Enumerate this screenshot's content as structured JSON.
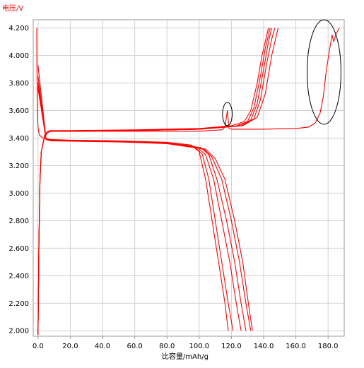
{
  "chart_data": {
    "type": "line",
    "title": "",
    "ylabel": "电压/V",
    "xlabel": "比容量/mAh/g",
    "xlim": [
      -3,
      190
    ],
    "ylim": [
      1.96,
      4.26
    ],
    "x_ticks": [
      "0.0",
      "20.0",
      "40.0",
      "60.0",
      "80.0",
      "100.0",
      "120.0",
      "140.0",
      "160.0",
      "180.0"
    ],
    "y_ticks": [
      "2.000",
      "2.200",
      "2.400",
      "2.600",
      "2.800",
      "3.000",
      "3.200",
      "3.400",
      "3.600",
      "3.800",
      "4.000",
      "4.200"
    ],
    "grid": true,
    "line_color": "#ff0000",
    "charge_curves": [
      {
        "x": [
          0,
          0.5,
          1.2,
          2,
          4,
          6,
          8,
          20,
          60,
          100,
          120,
          128,
          132,
          136,
          139,
          143
        ],
        "y": [
          1.97,
          2.6,
          3.1,
          3.3,
          3.42,
          3.45,
          3.455,
          3.455,
          3.46,
          3.47,
          3.49,
          3.52,
          3.6,
          3.8,
          4.0,
          4.2
        ]
      },
      {
        "x": [
          0,
          0.5,
          1.2,
          2,
          4,
          6,
          8,
          20,
          60,
          100,
          122,
          130,
          134,
          138,
          141,
          144
        ],
        "y": [
          1.97,
          2.6,
          3.1,
          3.3,
          3.41,
          3.44,
          3.45,
          3.45,
          3.455,
          3.465,
          3.485,
          3.52,
          3.62,
          3.85,
          4.05,
          4.2
        ]
      },
      {
        "x": [
          0,
          0.5,
          1.2,
          2,
          4,
          6,
          8,
          20,
          60,
          100,
          124,
          132,
          136,
          140,
          143,
          145
        ],
        "y": [
          1.97,
          2.6,
          3.1,
          3.3,
          3.41,
          3.44,
          3.45,
          3.45,
          3.455,
          3.465,
          3.49,
          3.53,
          3.65,
          3.9,
          4.1,
          4.2
        ]
      },
      {
        "x": [
          0,
          0.5,
          1.2,
          2,
          4,
          6,
          8,
          20,
          60,
          100,
          126,
          134,
          138,
          142,
          145,
          147
        ],
        "y": [
          1.97,
          2.6,
          3.1,
          3.3,
          3.41,
          3.44,
          3.45,
          3.45,
          3.455,
          3.465,
          3.49,
          3.54,
          3.68,
          3.95,
          4.12,
          4.2
        ]
      },
      {
        "x": [
          0,
          0.5,
          1.2,
          2,
          4,
          6,
          8,
          20,
          60,
          100,
          127,
          136,
          141,
          145,
          148,
          149
        ],
        "y": [
          1.97,
          2.6,
          3.1,
          3.3,
          3.41,
          3.44,
          3.45,
          3.45,
          3.455,
          3.465,
          3.49,
          3.55,
          3.72,
          4.0,
          4.15,
          4.2
        ]
      },
      {
        "x": [
          0,
          0.5,
          1.2,
          2,
          4,
          6,
          8,
          20,
          60,
          100,
          114,
          116,
          117.5,
          118.5,
          120,
          140,
          160,
          168,
          172,
          175,
          177,
          179,
          181,
          182.5,
          183.5,
          185,
          187
        ],
        "y": [
          1.97,
          2.6,
          3.1,
          3.3,
          3.41,
          3.44,
          3.45,
          3.45,
          3.45,
          3.45,
          3.46,
          3.48,
          3.6,
          3.47,
          3.465,
          3.465,
          3.47,
          3.48,
          3.51,
          3.58,
          3.7,
          3.9,
          4.05,
          4.15,
          4.1,
          4.16,
          4.2
        ]
      }
    ],
    "discharge_curves": [
      {
        "x": [
          -0.8,
          -0.7,
          -0.5,
          -0.3,
          0,
          0.5,
          1,
          2,
          3,
          5,
          8,
          20,
          50,
          80,
          95,
          100,
          104,
          108,
          112,
          116,
          118
        ],
        "y": [
          4.2,
          3.95,
          3.7,
          3.55,
          3.48,
          3.44,
          3.42,
          3.41,
          3.4,
          3.395,
          3.39,
          3.385,
          3.38,
          3.37,
          3.35,
          3.3,
          3.1,
          2.8,
          2.5,
          2.2,
          2.0
        ]
      },
      {
        "x": [
          0,
          5,
          8,
          20,
          50,
          80,
          97,
          102,
          106,
          110,
          114,
          118,
          121
        ],
        "y": [
          3.93,
          3.395,
          3.385,
          3.38,
          3.375,
          3.365,
          3.34,
          3.28,
          3.1,
          2.8,
          2.5,
          2.2,
          2.0
        ]
      },
      {
        "x": [
          0,
          5,
          8,
          20,
          50,
          80,
          99,
          104,
          109,
          114,
          119,
          123,
          126
        ],
        "y": [
          3.85,
          3.39,
          3.385,
          3.38,
          3.375,
          3.365,
          3.33,
          3.28,
          3.1,
          2.8,
          2.5,
          2.2,
          2.0
        ]
      },
      {
        "x": [
          0,
          5,
          8,
          20,
          50,
          80,
          101,
          106,
          111,
          117,
          122,
          126,
          129
        ],
        "y": [
          3.8,
          3.39,
          3.385,
          3.38,
          3.375,
          3.365,
          3.33,
          3.28,
          3.1,
          2.8,
          2.5,
          2.2,
          2.0
        ]
      },
      {
        "x": [
          0,
          5,
          8,
          20,
          50,
          80,
          103,
          108,
          114,
          120,
          125,
          129,
          132
        ],
        "y": [
          3.78,
          3.39,
          3.385,
          3.38,
          3.375,
          3.36,
          3.32,
          3.26,
          3.1,
          2.8,
          2.5,
          2.2,
          2.0
        ]
      },
      {
        "x": [
          0,
          5,
          8,
          20,
          50,
          80,
          104,
          110,
          116,
          122,
          127,
          130.5,
          133
        ],
        "y": [
          3.76,
          3.39,
          3.38,
          3.378,
          3.372,
          3.36,
          3.32,
          3.25,
          3.1,
          2.8,
          2.5,
          2.2,
          2.0
        ]
      }
    ],
    "annotations": [
      {
        "shape": "ellipse",
        "cx": 117.5,
        "cy": 3.575,
        "rx": 3,
        "ry": 0.084
      },
      {
        "shape": "ellipse",
        "cx": 177.5,
        "cy": 3.88,
        "rx": 10.5,
        "ry": 0.38
      }
    ]
  }
}
